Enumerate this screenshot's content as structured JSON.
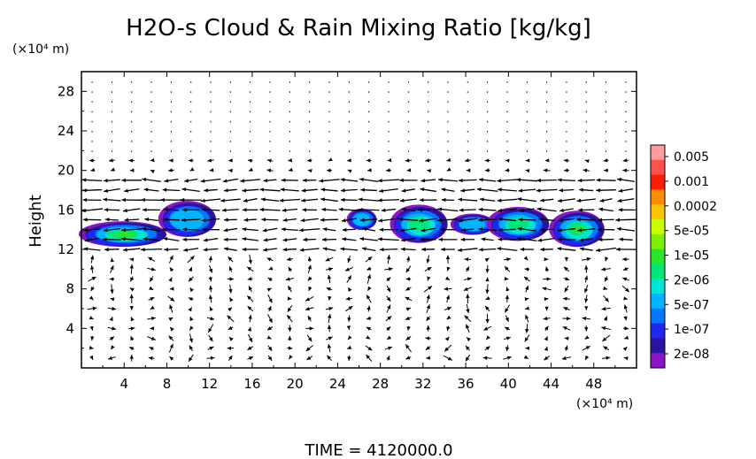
{
  "chart_data": {
    "type": "heatmap",
    "title": "H2O-s Cloud & Rain Mixing Ratio [kg/kg]",
    "ylabel": "Height",
    "xlabel": "",
    "x_unit_label": "(×10⁴ m)",
    "y_unit_label": "(×10⁴ m)",
    "xlim": [
      0,
      52
    ],
    "ylim": [
      0,
      30
    ],
    "x_ticks": [
      4,
      8,
      12,
      16,
      20,
      24,
      28,
      32,
      36,
      40,
      44,
      48
    ],
    "y_ticks": [
      4,
      8,
      12,
      16,
      20,
      24,
      28
    ],
    "time_label": "TIME = 4120000.0",
    "colorbar": {
      "labels": [
        "0.005",
        "0.001",
        "0.0002",
        "5e-05",
        "1e-05",
        "2e-06",
        "5e-07",
        "1e-07",
        "2e-08"
      ],
      "colors": [
        "#ff9c9c",
        "#ff5050",
        "#ff1c00",
        "#ff8c00",
        "#ffc400",
        "#c8ff00",
        "#7cf000",
        "#28e628",
        "#00e67a",
        "#00e6d2",
        "#00b4ff",
        "#0078ff",
        "#1e28f0",
        "#2814a0",
        "#8c14c8"
      ]
    },
    "cloud_regions": [
      {
        "x_center": 4.0,
        "y_center": 13.5,
        "x_halfwidth": 3.8,
        "y_halfwidth": 1.2,
        "peak": "1e-05"
      },
      {
        "x_center": 10.0,
        "y_center": 15.0,
        "x_halfwidth": 2.5,
        "y_halfwidth": 1.7,
        "peak": "5e-07"
      },
      {
        "x_center": 26.3,
        "y_center": 15.0,
        "x_halfwidth": 1.3,
        "y_halfwidth": 1.0,
        "peak": "5e-07"
      },
      {
        "x_center": 31.7,
        "y_center": 14.5,
        "x_halfwidth": 2.5,
        "y_halfwidth": 1.8,
        "peak": "5e-06"
      },
      {
        "x_center": 36.7,
        "y_center": 14.5,
        "x_halfwidth": 1.9,
        "y_halfwidth": 1.0,
        "peak": "5e-07"
      },
      {
        "x_center": 41.0,
        "y_center": 14.5,
        "x_halfwidth": 2.7,
        "y_halfwidth": 1.6,
        "peak": "5e-06"
      },
      {
        "x_center": 46.5,
        "y_center": 14.0,
        "x_halfwidth": 2.4,
        "y_halfwidth": 1.7,
        "peak": "1e-05"
      }
    ]
  }
}
